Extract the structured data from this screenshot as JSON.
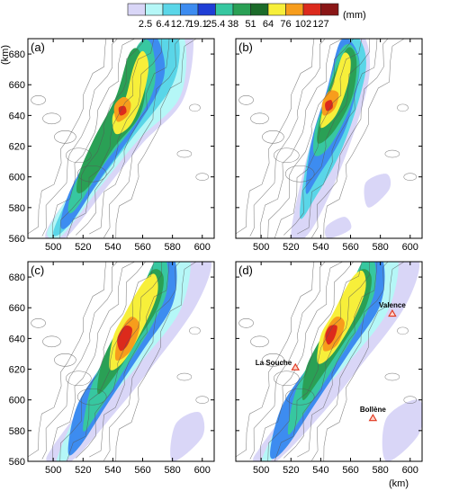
{
  "colorbar": {
    "levels": [
      "2.5",
      "6.4",
      "12.7",
      "19.1",
      "25.4",
      "38",
      "51",
      "64",
      "76",
      "102",
      "127"
    ],
    "colors": [
      "#d9d6f7",
      "#b5f7f7",
      "#5ad6e8",
      "#3d8cf0",
      "#1f3ed6",
      "#37c7a0",
      "#2aa055",
      "#1c6b2a",
      "#f7ef3a",
      "#f79d1c",
      "#dc2a1c",
      "#8a1616"
    ],
    "unit": "(mm)"
  },
  "axes": {
    "x_ticks": [
      "500",
      "520",
      "540",
      "560",
      "580",
      "600"
    ],
    "y_ticks": [
      "560",
      "580",
      "600",
      "620",
      "640",
      "660",
      "680"
    ],
    "y_unit": "(km)",
    "x_unit": "(km)",
    "xlim": [
      483,
      608
    ],
    "ylim": [
      560,
      690
    ]
  },
  "panels": [
    {
      "label": "(a)"
    },
    {
      "label": "(b)"
    },
    {
      "label": "(c)"
    },
    {
      "label": "(d)"
    }
  ],
  "sites": [
    {
      "name": "Valence",
      "x": 588,
      "y": 656
    },
    {
      "name": "La Souche",
      "x": 523,
      "y": 621
    },
    {
      "name": "Bollène",
      "x": 575,
      "y": 588
    }
  ]
}
